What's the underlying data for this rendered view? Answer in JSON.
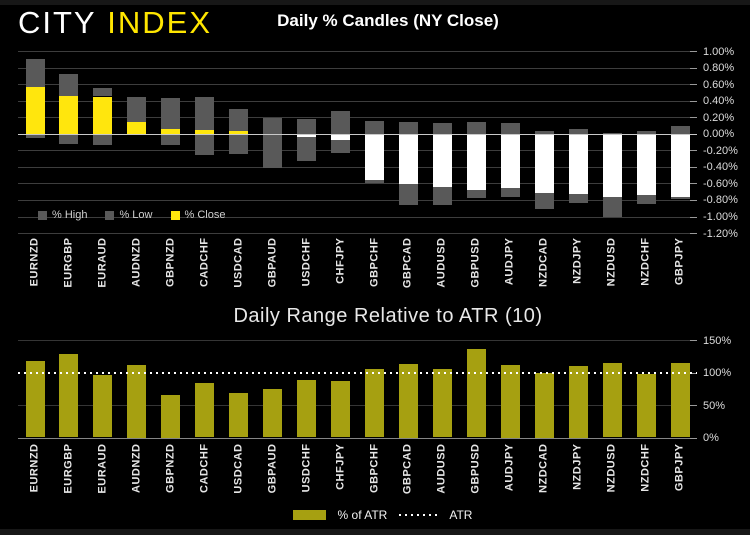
{
  "header": {
    "logo_city": "CITY",
    "logo_index": "INDEX",
    "title": "Daily % Candles (NY Close)"
  },
  "bottom": {
    "title": "Daily Range Relative to ATR (10)"
  },
  "chart_data": [
    {
      "type": "bar",
      "title": "Daily % Candles (NY Close)",
      "categories": [
        "EURNZD",
        "EURGBP",
        "EURAUD",
        "AUDNZD",
        "GBPNZD",
        "CADCHF",
        "USDCAD",
        "GBPAUD",
        "USDCHF",
        "CHFJPY",
        "GBPCHF",
        "GBPCAD",
        "AUDUSD",
        "GBPUSD",
        "AUDJPY",
        "NZDCAD",
        "NZDJPY",
        "NZDUSD",
        "NZDCHF",
        "GBPJPY"
      ],
      "series": [
        {
          "name": "% High",
          "values": [
            0.9,
            0.72,
            0.55,
            0.45,
            0.43,
            0.44,
            0.3,
            0.19,
            0.18,
            0.27,
            0.16,
            0.14,
            0.13,
            0.14,
            0.13,
            0.03,
            0.06,
            0.01,
            0.03,
            0.09
          ]
        },
        {
          "name": "% Low",
          "values": [
            -0.05,
            -0.12,
            -0.14,
            -0.01,
            -0.14,
            -0.26,
            -0.24,
            -0.41,
            -0.33,
            -0.24,
            -0.59,
            -0.86,
            -0.86,
            -0.78,
            -0.77,
            -0.91,
            -0.84,
            -1.01,
            -0.85,
            -0.79
          ]
        },
        {
          "name": "% Close",
          "values": [
            0.56,
            0.46,
            0.45,
            0.14,
            0.06,
            0.04,
            0.03,
            0.0,
            -0.04,
            -0.08,
            -0.56,
            -0.61,
            -0.64,
            -0.68,
            -0.66,
            -0.72,
            -0.73,
            -0.76,
            -0.74,
            -0.77
          ]
        }
      ],
      "ylim": [
        -1.2,
        1.0
      ],
      "yticks": [
        1.0,
        0.8,
        0.6,
        0.4,
        0.2,
        0.0,
        -0.2,
        -0.4,
        -0.6,
        -0.8,
        -1.0,
        -1.2
      ],
      "ytick_labels": [
        "1.00%",
        "0.80%",
        "0.60%",
        "0.40%",
        "0.20%",
        "0.00%",
        "-0.20%",
        "-0.40%",
        "-0.60%",
        "-0.80%",
        "-1.00%",
        "-1.20%"
      ],
      "legend_position": "bottom-left",
      "grid": true,
      "colors": {
        "high_low": "#595959",
        "close_positive": "#ffe60d",
        "close_negative": "#ffffff",
        "zero_line": "#c9c9c9"
      }
    },
    {
      "type": "bar",
      "title": "Daily Range Relative to ATR (10)",
      "categories": [
        "EURNZD",
        "EURGBP",
        "EURAUD",
        "AUDNZD",
        "GBPNZD",
        "CADCHF",
        "USDCAD",
        "GBPAUD",
        "USDCHF",
        "CHFJPY",
        "GBPCHF",
        "GBPCAD",
        "AUDUSD",
        "GBPUSD",
        "AUDJPY",
        "NZDCAD",
        "NZDJPY",
        "NZDUSD",
        "NZDCHF",
        "GBPJPY"
      ],
      "series": [
        {
          "name": "% of ATR",
          "values": [
            118,
            128,
            96,
            111,
            65,
            84,
            68,
            74,
            88,
            87,
            106,
            113,
            106,
            136,
            111,
            100,
            110,
            114,
            98,
            114
          ]
        }
      ],
      "reference_line": {
        "name": "ATR",
        "value": 100,
        "style": "dotted",
        "color": "#ffffff"
      },
      "ylim": [
        0,
        150
      ],
      "yticks": [
        150,
        100,
        50,
        0
      ],
      "ytick_labels": [
        "150%",
        "100%",
        "50%",
        "0%"
      ],
      "legend_position": "bottom-center",
      "colors": {
        "bar": "#a6a011"
      }
    }
  ]
}
